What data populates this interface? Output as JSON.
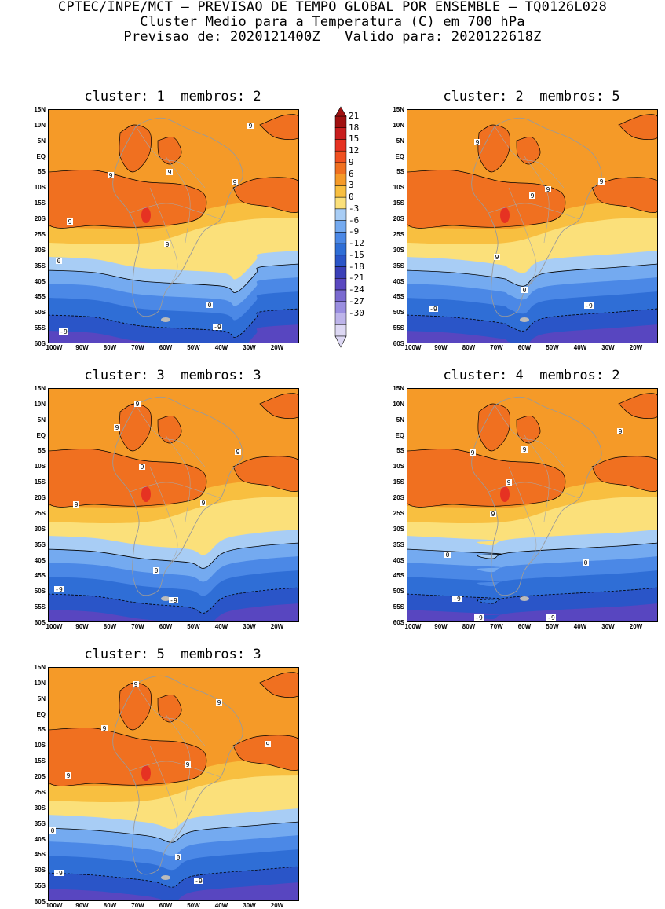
{
  "header": {
    "line1": "CPTEC/INPE/MCT – PREVISAO DE TEMPO GLOBAL POR ENSEMBLE – TQ0126L028",
    "line2": "Cluster Medio para a Temperatura (C) em 700 hPa",
    "line3": "Previsao de: 2020121400Z   Valido para: 2020122618Z"
  },
  "panels": [
    {
      "title": "cluster: 1  membros: 2"
    },
    {
      "title": "cluster: 2  membros: 5"
    },
    {
      "title": "cluster: 3  membros: 3"
    },
    {
      "title": "cluster: 4  membros: 2"
    },
    {
      "title": "cluster: 5  membros: 3"
    }
  ],
  "axes": {
    "lat_labels": [
      "15N",
      "10N",
      "5N",
      "EQ",
      "5S",
      "10S",
      "15S",
      "20S",
      "25S",
      "30S",
      "35S",
      "40S",
      "45S",
      "50S",
      "55S",
      "60S"
    ],
    "lon_labels": [
      "100W",
      "90W",
      "80W",
      "70W",
      "60W",
      "50W",
      "40W",
      "30W",
      "20W"
    ]
  },
  "colorbar": {
    "labels": [
      "21",
      "18",
      "15",
      "12",
      "9",
      "6",
      "3",
      "0",
      "-3",
      "-6",
      "-9",
      "-12",
      "-15",
      "-18",
      "-21",
      "-24",
      "-27",
      "-30"
    ],
    "colors": [
      "#a01010",
      "#c81e1e",
      "#e63222",
      "#f05020",
      "#f07020",
      "#f59a28",
      "#f8bf40",
      "#fbe07a",
      "#a8cdf5",
      "#74aaf0",
      "#4b88e6",
      "#2f6ed6",
      "#2a55c8",
      "#3a40b8",
      "#5a48c0",
      "#7a6ad0",
      "#9a8ee0",
      "#bdb4ea",
      "#ddd8f4"
    ]
  },
  "contour_labels": {
    "p1": [
      "9",
      "9",
      "9",
      "9",
      "9",
      "9",
      "0",
      "0",
      "-9",
      "-9"
    ],
    "p2": [
      "9",
      "9",
      "9",
      "9",
      "9",
      "0",
      "-9",
      "-9"
    ],
    "p3": [
      "9",
      "9",
      "9",
      "9",
      "9",
      "9",
      "0",
      "-9",
      "-9"
    ],
    "p4": [
      "9",
      "9",
      "9",
      "9",
      "9",
      "0",
      "0",
      "-9",
      "-9",
      "-9"
    ],
    "p5": [
      "9",
      "9",
      "9",
      "9",
      "9",
      "9",
      "0",
      "0",
      "-9",
      "-9"
    ]
  }
}
